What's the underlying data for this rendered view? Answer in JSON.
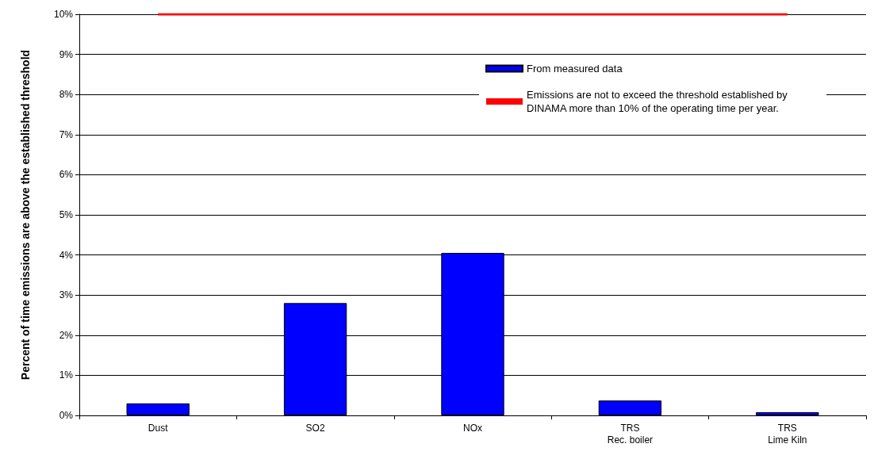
{
  "chart_data": {
    "type": "bar",
    "ylabel": "Percent of time emissions are above the established threshold",
    "categories": [
      "Dust",
      "SO2",
      "NOx",
      "TRS\nRec. boiler",
      "TRS\nLime Kiln"
    ],
    "series": [
      {
        "name": "From measured data",
        "color": "#0000ff",
        "values": [
          0.3,
          2.8,
          4.05,
          0.37,
          0.08
        ]
      },
      {
        "name": "Emissions are not to exceed the threshold established by DINAMA more than 10% of the operating time per year.",
        "type": "line",
        "color": "#ff0000",
        "line_style": "solid",
        "marker": "none",
        "values": [
          10,
          10,
          10,
          10,
          10
        ]
      }
    ],
    "ylim": [
      0,
      10
    ],
    "yticks": [
      {
        "value": 0,
        "label": "0%"
      },
      {
        "value": 1,
        "label": "1%"
      },
      {
        "value": 2,
        "label": "2%"
      },
      {
        "value": 3,
        "label": "3%"
      },
      {
        "value": 4,
        "label": "4%"
      },
      {
        "value": 5,
        "label": "5%"
      },
      {
        "value": 6,
        "label": "6%"
      },
      {
        "value": 7,
        "label": "7%"
      },
      {
        "value": 8,
        "label": "8%"
      },
      {
        "value": 9,
        "label": "9%"
      },
      {
        "value": 10,
        "label": "10%"
      }
    ],
    "grid": "y",
    "legend": "top right"
  }
}
